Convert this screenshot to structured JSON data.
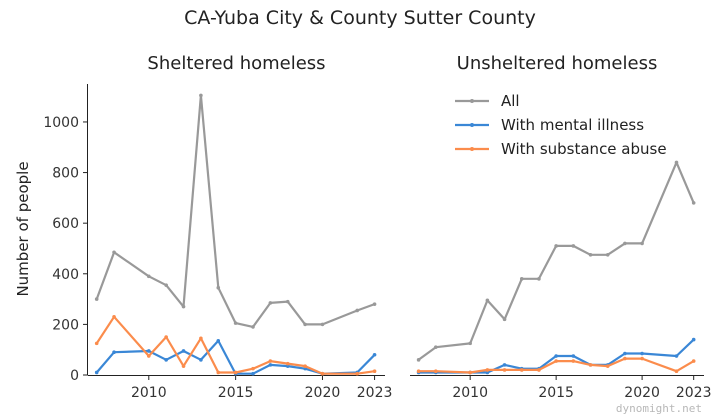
{
  "chart_data": {
    "type": "line",
    "title": "CA-Yuba City & County Sutter County",
    "ylabel": "Number of people",
    "ylim": [
      0,
      1150
    ],
    "xlim": [
      2006.5,
      2023.6
    ],
    "yticks": [
      0,
      200,
      400,
      600,
      800,
      1000
    ],
    "xticks": [
      2010,
      2015,
      2020,
      2023
    ],
    "legend": {
      "location": "upper-center of right panel",
      "entries": [
        "All",
        "With mental illness",
        "With substance abuse"
      ]
    },
    "colors": {
      "All": "#999999",
      "With mental illness": "#3a87d6",
      "With substance abuse": "#fb8c4c"
    },
    "panels": [
      {
        "title": "Sheltered homeless",
        "show_ylabel": true,
        "series": [
          {
            "name": "All",
            "x": [
              2007,
              2008,
              2010,
              2011,
              2012,
              2013,
              2014,
              2015,
              2016,
              2017,
              2018,
              2019,
              2020,
              2022,
              2023
            ],
            "y": [
              300,
              485,
              390,
              355,
              270,
              1105,
              345,
              205,
              190,
              285,
              290,
              200,
              200,
              255,
              280
            ]
          },
          {
            "name": "With mental illness",
            "x": [
              2007,
              2008,
              2010,
              2011,
              2012,
              2013,
              2014,
              2015,
              2016,
              2017,
              2018,
              2019,
              2020,
              2022,
              2023
            ],
            "y": [
              10,
              90,
              95,
              60,
              95,
              60,
              135,
              5,
              5,
              40,
              35,
              25,
              5,
              10,
              80
            ]
          },
          {
            "name": "With substance abuse",
            "x": [
              2007,
              2008,
              2010,
              2011,
              2012,
              2013,
              2014,
              2015,
              2016,
              2017,
              2018,
              2019,
              2020,
              2022,
              2023
            ],
            "y": [
              125,
              230,
              75,
              150,
              35,
              145,
              10,
              10,
              25,
              55,
              45,
              35,
              5,
              5,
              15
            ]
          }
        ]
      },
      {
        "title": "Unsheltered homeless",
        "show_ylabel": false,
        "series": [
          {
            "name": "All",
            "x": [
              2007,
              2008,
              2010,
              2011,
              2012,
              2013,
              2014,
              2015,
              2016,
              2017,
              2018,
              2019,
              2020,
              2022,
              2023
            ],
            "y": [
              60,
              110,
              125,
              295,
              220,
              380,
              380,
              510,
              510,
              475,
              475,
              520,
              520,
              840,
              680
            ]
          },
          {
            "name": "With mental illness",
            "x": [
              2007,
              2008,
              2010,
              2011,
              2012,
              2013,
              2014,
              2015,
              2016,
              2017,
              2018,
              2019,
              2020,
              2022,
              2023
            ],
            "y": [
              10,
              10,
              10,
              10,
              40,
              25,
              25,
              75,
              75,
              40,
              40,
              85,
              85,
              75,
              140
            ]
          },
          {
            "name": "With substance abuse",
            "x": [
              2007,
              2008,
              2010,
              2011,
              2012,
              2013,
              2014,
              2015,
              2016,
              2017,
              2018,
              2019,
              2020,
              2022,
              2023
            ],
            "y": [
              15,
              15,
              10,
              20,
              20,
              20,
              20,
              55,
              55,
              40,
              35,
              65,
              65,
              15,
              55
            ]
          }
        ]
      }
    ]
  },
  "watermark": "dynomight.net"
}
